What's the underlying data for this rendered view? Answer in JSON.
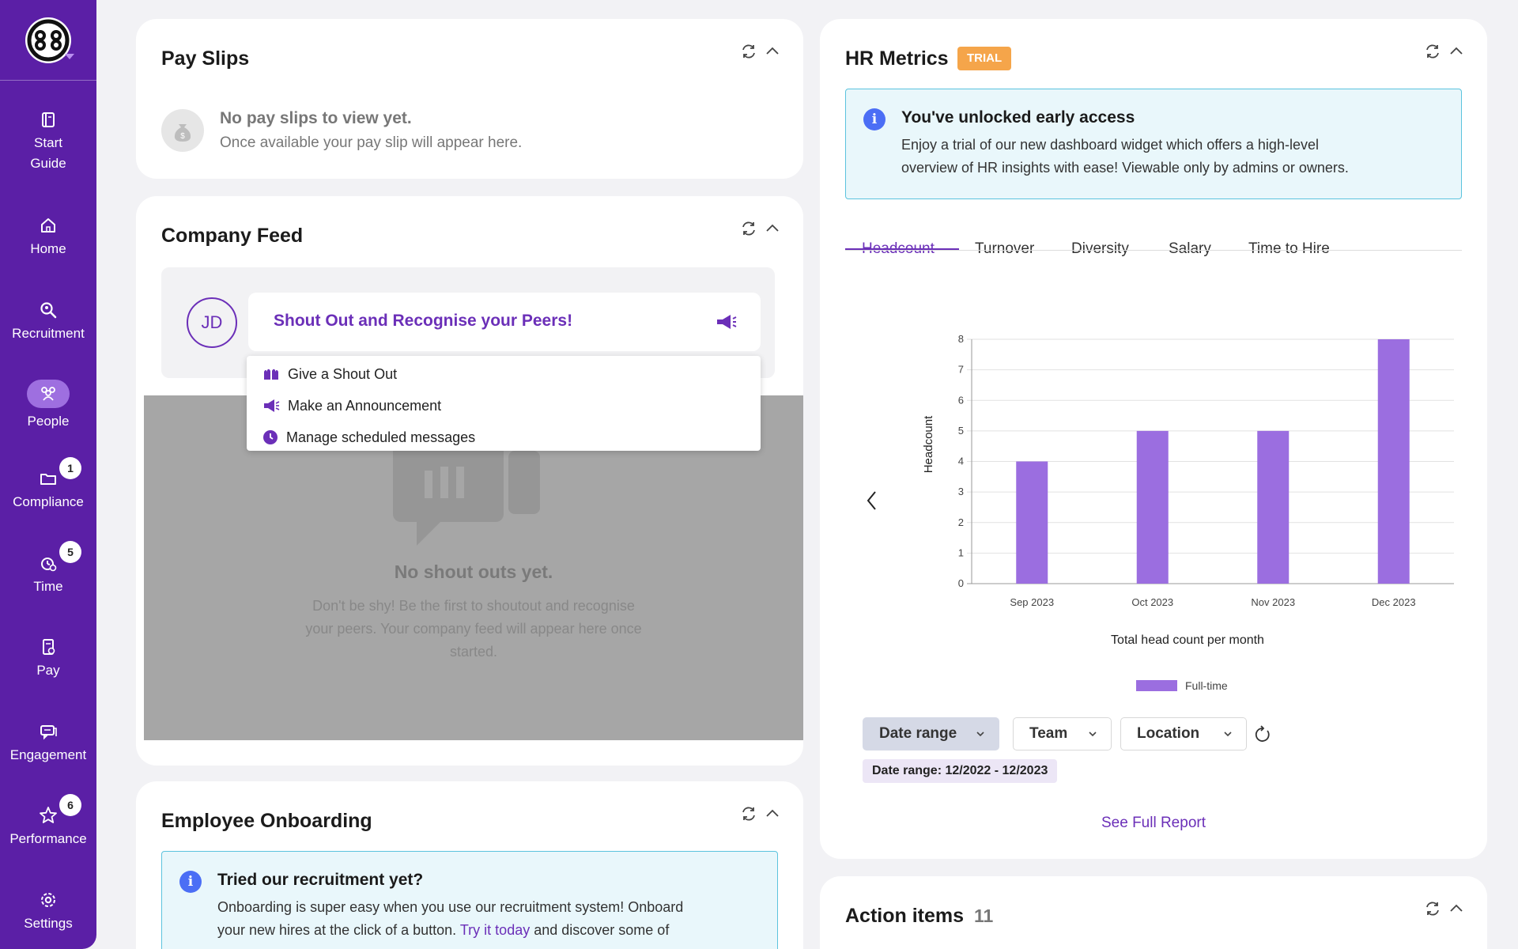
{
  "sidebar": {
    "items": [
      {
        "label_1": "Start",
        "label_2": "Guide"
      },
      {
        "label": "Home"
      },
      {
        "label": "Recruitment"
      },
      {
        "label": "People"
      },
      {
        "label": "Compliance",
        "badge": "1"
      },
      {
        "label": "Time",
        "badge": "5"
      },
      {
        "label": "Pay"
      },
      {
        "label": "Engagement"
      },
      {
        "label": "Performance",
        "badge": "6"
      },
      {
        "label": "Settings"
      }
    ]
  },
  "payslips": {
    "title": "Pay Slips",
    "empty_title": "No pay slips to view yet.",
    "empty_sub": "Once available your pay slip will appear here."
  },
  "feed": {
    "title": "Company Feed",
    "avatar": "JD",
    "prompt": "Shout Out and Recognise your Peers!",
    "menu": [
      {
        "label": "Give a Shout Out"
      },
      {
        "label": "Make an Announcement"
      },
      {
        "label": "Manage scheduled messages"
      }
    ],
    "empty_title": "No shout outs yet.",
    "empty_line1": "Don't be shy! Be the first to shoutout and recognise",
    "empty_line2": "your peers. Your company feed will appear here once",
    "empty_line3": "started."
  },
  "onboarding": {
    "title": "Employee Onboarding",
    "info_title": "Tried our recruitment yet?",
    "info_line1": "Onboarding is super easy when you use our recruitment system! Onboard",
    "info_line2_a": "your new hires at the click of a button.",
    "info_link": "Try it today",
    "info_line2_b": "and discover some of"
  },
  "hr": {
    "title": "HR Metrics",
    "badge": "TRIAL",
    "info_title": "You've unlocked early access",
    "info_line1": "Enjoy a trial of our new dashboard widget which offers a high-level",
    "info_line2": "overview of HR insights with ease! Viewable only by admins or owners.",
    "tabs": [
      "Headcount",
      "Turnover",
      "Diversity",
      "Salary",
      "Time to Hire"
    ],
    "filters": {
      "date": "Date range",
      "team": "Team",
      "location": "Location"
    },
    "date_chip": "Date range: 12/2022 - 12/2023",
    "see_full": "See Full Report"
  },
  "action_items": {
    "title": "Action items",
    "count": "11"
  },
  "colors": {
    "sidebar": "#5b1fa6",
    "accent": "#6b2fb8",
    "bar": "#9b6ee0",
    "trial": "#f5a54a"
  },
  "chart_data": {
    "type": "bar",
    "title": "Total head count per month",
    "xlabel": "",
    "ylabel": "Headcount",
    "categories": [
      "Sep 2023",
      "Oct 2023",
      "Nov 2023",
      "Dec 2023"
    ],
    "series": [
      {
        "name": "Full-time",
        "values": [
          4,
          5,
          5,
          8
        ]
      }
    ],
    "ylim": [
      0,
      8
    ],
    "yticks": [
      0,
      1,
      2,
      3,
      4,
      5,
      6,
      7,
      8
    ],
    "grid": true,
    "legend": "bottom"
  }
}
